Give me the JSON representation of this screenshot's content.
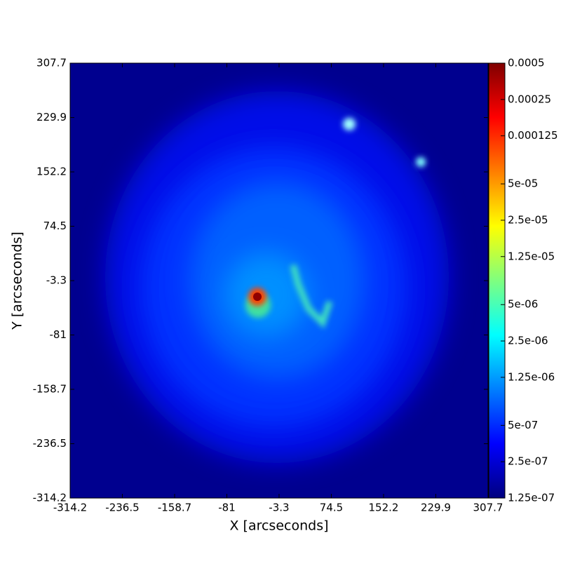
{
  "chart_data": {
    "type": "heatmap",
    "xlabel": "X [arcseconds]",
    "ylabel": "Y [arcseconds]",
    "xlim": [
      -314.2,
      307.7
    ],
    "xticks": [
      -314.2,
      -236.5,
      -158.7,
      -81.0,
      -3.3,
      74.5,
      152.2,
      229.9,
      307.7
    ],
    "ylim": [
      -314.2,
      307.7
    ],
    "yticks": [
      -314.2,
      -236.5,
      -158.7,
      -81.0,
      -3.3,
      74.5,
      152.2,
      229.9,
      307.7
    ],
    "colorbar": {
      "scale": "log",
      "colormap": "jet",
      "lim": [
        1.25e-07,
        0.0005
      ],
      "ticks": [
        {
          "value": 1.25e-07,
          "label": "1.25e-07"
        },
        {
          "value": 2.5e-07,
          "label": "2.5e-07"
        },
        {
          "value": 5e-07,
          "label": "5e-07"
        },
        {
          "value": 1.25e-06,
          "label": "1.25e-06"
        },
        {
          "value": 2.5e-06,
          "label": "2.5e-06"
        },
        {
          "value": 5e-06,
          "label": "5e-06"
        },
        {
          "value": 1.25e-05,
          "label": "1.25e-05"
        },
        {
          "value": 2.5e-05,
          "label": "2.5e-05"
        },
        {
          "value": 5e-05,
          "label": "5e-05"
        },
        0.000125,
        0.00025,
        0.0005
      ]
    }
  }
}
